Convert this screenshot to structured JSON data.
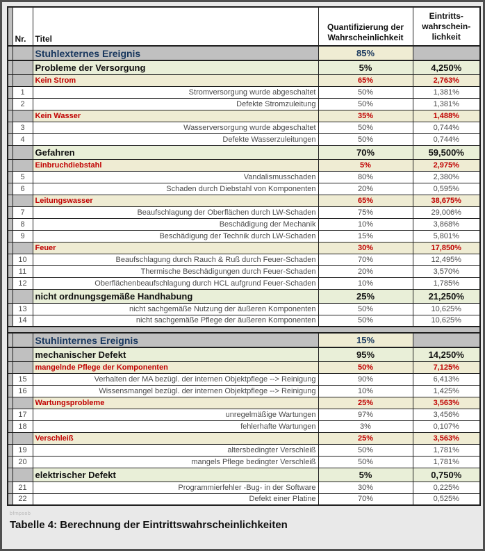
{
  "header": {
    "nr": "Nr.",
    "titel": "Titel",
    "quant": "Quantifizierung der Wahrscheinlichkeit",
    "eintritt": "Eintritts-\nwahrschein-\nlichkeit"
  },
  "caption": "Tabelle 4: Berechnung der Eintrittswahrscheinlichkeiten",
  "watermark": "bfmpsob",
  "colors": {
    "section_text": "#17365d",
    "subcategory_text": "#c00000",
    "gray_cell": "#c0c0c0",
    "cream_cell": "#efecd3",
    "green_cell": "#e9efd8",
    "border_col": "#1f1f1f"
  },
  "rows": [
    {
      "type": "section",
      "titel": "Stuhlexternes Ereignis",
      "quant": "85%",
      "eintritt": ""
    },
    {
      "type": "category",
      "titel": "Probleme der Versorgung",
      "quant": "5%",
      "eintritt": "4,250%"
    },
    {
      "type": "subcategory",
      "titel": "Kein Strom",
      "quant": "65%",
      "eintritt": "2,763%"
    },
    {
      "type": "leaf",
      "nr": "1",
      "titel": "Stromversorgung wurde abgeschaltet",
      "quant": "50%",
      "eintritt": "1,381%"
    },
    {
      "type": "leaf",
      "nr": "2",
      "titel": "Defekte Stromzuleitung",
      "quant": "50%",
      "eintritt": "1,381%"
    },
    {
      "type": "subcategory",
      "titel": "Kein Wasser",
      "quant": "35%",
      "eintritt": "1,488%"
    },
    {
      "type": "leaf",
      "nr": "3",
      "titel": "Wasserversorgung wurde abgeschaltet",
      "quant": "50%",
      "eintritt": "0,744%"
    },
    {
      "type": "leaf",
      "nr": "4",
      "titel": "Defekte Wasserzuleitungen",
      "quant": "50%",
      "eintritt": "0,744%"
    },
    {
      "type": "category",
      "titel": "Gefahren",
      "quant": "70%",
      "eintritt": "59,500%"
    },
    {
      "type": "subcategory",
      "titel": "Einbruchdiebstahl",
      "quant": "5%",
      "eintritt": "2,975%"
    },
    {
      "type": "leaf",
      "nr": "5",
      "titel": "Vandalismusschaden",
      "quant": "80%",
      "eintritt": "2,380%"
    },
    {
      "type": "leaf",
      "nr": "6",
      "titel": "Schaden durch Diebstahl von Komponenten",
      "quant": "20%",
      "eintritt": "0,595%"
    },
    {
      "type": "subcategory",
      "titel": "Leitungswasser",
      "quant": "65%",
      "eintritt": "38,675%"
    },
    {
      "type": "leaf",
      "nr": "7",
      "titel": "Beaufschlagung der Oberflächen durch LW-Schaden",
      "quant": "75%",
      "eintritt": "29,006%"
    },
    {
      "type": "leaf",
      "nr": "8",
      "titel": "Beschädigung der Mechanik",
      "quant": "10%",
      "eintritt": "3,868%"
    },
    {
      "type": "leaf",
      "nr": "9",
      "titel": "Beschädigung der Technik durch LW-Schaden",
      "quant": "15%",
      "eintritt": "5,801%"
    },
    {
      "type": "subcategory",
      "titel": "Feuer",
      "quant": "30%",
      "eintritt": "17,850%"
    },
    {
      "type": "leaf",
      "nr": "10",
      "titel": "Beaufschlagung durch Rauch & Ruß durch Feuer-Schaden",
      "quant": "70%",
      "eintritt": "12,495%"
    },
    {
      "type": "leaf",
      "nr": "11",
      "titel": "Thermische Beschädigungen durch Feuer-Schaden",
      "quant": "20%",
      "eintritt": "3,570%"
    },
    {
      "type": "leaf",
      "nr": "12",
      "titel": "Oberflächenbeaufschlagung durch HCL aufgrund Feuer-Schaden",
      "quant": "10%",
      "eintritt": "1,785%"
    },
    {
      "type": "category",
      "titel": "nicht ordnungsgemäße Handhabung",
      "quant": "25%",
      "eintritt": "21,250%"
    },
    {
      "type": "leaf",
      "nr": "13",
      "titel": "nicht sachgemäße Nutzung der äußeren Komponenten",
      "quant": "50%",
      "eintritt": "10,625%"
    },
    {
      "type": "leaf",
      "nr": "14",
      "titel": "nicht sachgemäße Pflege der äußeren Komponenten",
      "quant": "50%",
      "eintritt": "10,625%"
    },
    {
      "type": "spacer"
    },
    {
      "type": "section",
      "titel": "Stuhlinternes Ereignis",
      "quant": "15%",
      "eintritt": ""
    },
    {
      "type": "category",
      "titel": "mechanischer Defekt",
      "quant": "95%",
      "eintritt": "14,250%"
    },
    {
      "type": "subcategory",
      "titel": "mangelnde Pflege der Komponenten",
      "quant": "50%",
      "eintritt": "7,125%"
    },
    {
      "type": "leaf",
      "nr": "15",
      "titel": "Verhalten der MA bezügl. der internen Objektpflege --> Reinigung",
      "quant": "90%",
      "eintritt": "6,413%"
    },
    {
      "type": "leaf",
      "nr": "16",
      "titel": "Wissensmangel bezügl. der internen Objektpflege --> Reinigung",
      "quant": "10%",
      "eintritt": "1,425%"
    },
    {
      "type": "subcategory",
      "titel": "Wartungsprobleme",
      "quant": "25%",
      "eintritt": "3,563%"
    },
    {
      "type": "leaf",
      "nr": "17",
      "titel": "unregelmäßige Wartungen",
      "quant": "97%",
      "eintritt": "3,456%"
    },
    {
      "type": "leaf",
      "nr": "18",
      "titel": "fehlerhafte Wartungen",
      "quant": "3%",
      "eintritt": "0,107%"
    },
    {
      "type": "subcategory",
      "titel": "Verschleiß",
      "quant": "25%",
      "eintritt": "3,563%"
    },
    {
      "type": "leaf",
      "nr": "19",
      "titel": "altersbedingter Verschleiß",
      "quant": "50%",
      "eintritt": "1,781%"
    },
    {
      "type": "leaf",
      "nr": "20",
      "titel": "mangels Pflege bedingter Verschleiß",
      "quant": "50%",
      "eintritt": "1,781%"
    },
    {
      "type": "category",
      "titel": "elektrischer Defekt",
      "quant": "5%",
      "eintritt": "0,750%"
    },
    {
      "type": "leaf",
      "nr": "21",
      "titel": "Programmierfehler -Bug- in der Software",
      "quant": "30%",
      "eintritt": "0,225%"
    },
    {
      "type": "leaf",
      "nr": "22",
      "titel": "Defekt einer Platine",
      "quant": "70%",
      "eintritt": "0,525%"
    }
  ]
}
